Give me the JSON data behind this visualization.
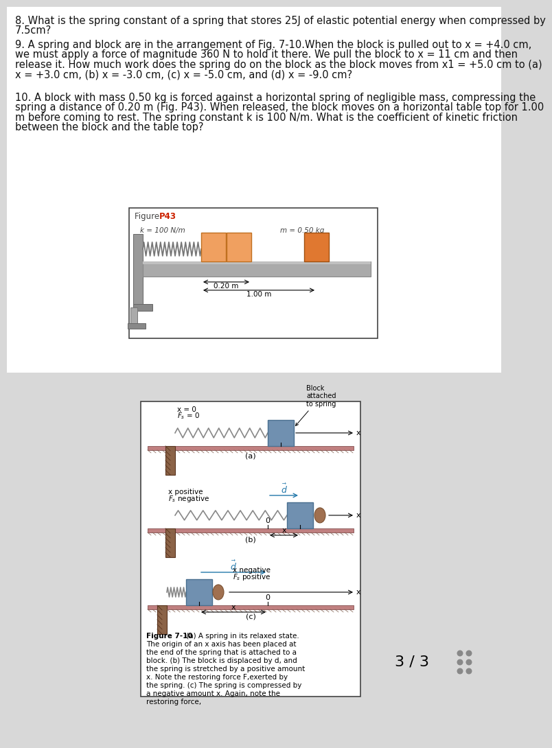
{
  "page_bg_top": "#ffffff",
  "page_bg_bot": "#d8d8d8",
  "separator_color": "#cccccc",
  "text_color": "#111111",
  "orange_light": "#f0a060",
  "orange_dark": "#e07830",
  "gray_table": "#aaaaaa",
  "gray_table2": "#c0c0c0",
  "spring_gray": "#888888",
  "wall_brown": "#7a5230",
  "wall_brown2": "#9a6a40",
  "floor_red": "#c08080",
  "floor_red2": "#a06060",
  "blue_block": "#7090b0",
  "blue_block2": "#90b8d0",
  "hand_brown": "#a07050",
  "box_border": "#444444",
  "red_text": "#cc2200",
  "dim_line": "#333333",
  "q8": "8. What is the spring constant of a spring that stores 25J of elastic potential energy when compressed by\n7.5cm?",
  "q9": "9. A spring and block are in the arrangement of Fig. 7-10.When the block is pulled out to x = +4.0 cm,\nwe must apply a force of magnitude 360 N to hold it there. We pull the block to x = 11 cm and then\nrelease it. How much work does the spring do on the block as the block moves from x1 = +5.0 cm to (a)\nx = +3.0 cm, (b) x = -3.0 cm, (c) x = -5.0 cm, and (d) x = -9.0 cm?",
  "q10": "10. A block with mass 0.50 kg is forced against a horizontal spring of negligible mass, compressing the\nspring a distance of 0.20 m (Fig. P43). When released, the block moves on a horizontal table top for 1.00\nm before coming to rest. The spring constant k is 100 N/m. What is the coefficient of kinetic friction\nbetween the block and the table top?",
  "cap710": "Figure 7-10  (a) A spring in its relaxed state.\nThe origin of an x axis has been placed at\nthe end of the spring that is attached to a\nblock. (b) The block is displaced by d, and\nthe spring is stretched by a positive amount\nx. Note the restoring force F,exerted by\nthe spring. (c) The spring is compressed by\na negative amount x. Again, note the\nrestoring force,"
}
